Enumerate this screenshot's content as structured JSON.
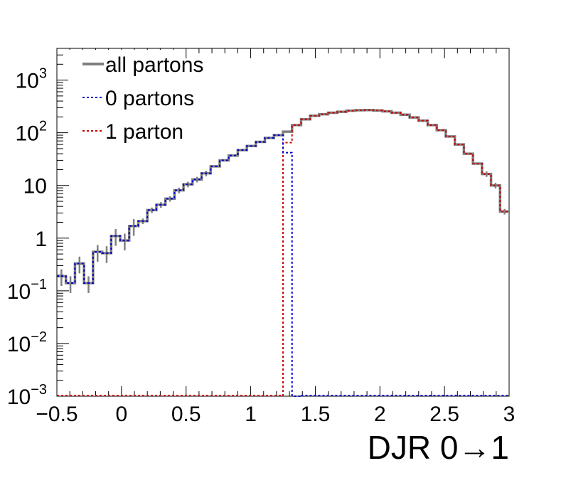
{
  "chart_data": {
    "type": "line",
    "title": "",
    "xlabel": "DJR 0→1",
    "ylabel": "",
    "xlim": [
      -0.5,
      3.0
    ],
    "ylim": [
      0.001,
      4000
    ],
    "y_scale": "log",
    "grid": false,
    "legend_position": "top-left",
    "x_tick_labels": [
      {
        "value": -0.5,
        "label": "−0.5"
      },
      {
        "value": 0,
        "label": "0"
      },
      {
        "value": 0.5,
        "label": "0.5"
      },
      {
        "value": 1,
        "label": "1"
      },
      {
        "value": 1.5,
        "label": "1.5"
      },
      {
        "value": 2,
        "label": "2"
      },
      {
        "value": 2.5,
        "label": "2.5"
      },
      {
        "value": 3,
        "label": "3"
      }
    ],
    "y_tick_labels": [
      {
        "value": 0.001,
        "base": "10",
        "exp": "−3"
      },
      {
        "value": 0.01,
        "base": "10",
        "exp": "−2"
      },
      {
        "value": 0.1,
        "base": "10",
        "exp": "−1"
      },
      {
        "value": 1,
        "base": "1",
        "exp": ""
      },
      {
        "value": 10,
        "base": "10",
        "exp": ""
      },
      {
        "value": 100,
        "base": "10",
        "exp": "2"
      },
      {
        "value": 1000,
        "base": "10",
        "exp": "3"
      }
    ],
    "bin_width": 0.07,
    "series": [
      {
        "name": "all partons",
        "color": "#808080",
        "style": "solid",
        "bins": [
          [
            -0.5,
            0.19
          ],
          [
            -0.43,
            0.14
          ],
          [
            -0.36,
            0.33
          ],
          [
            -0.29,
            0.14
          ],
          [
            -0.22,
            0.55
          ],
          [
            -0.15,
            0.52
          ],
          [
            -0.08,
            1.1
          ],
          [
            -0.01,
            0.9
          ],
          [
            0.06,
            1.7
          ],
          [
            0.13,
            2.1
          ],
          [
            0.2,
            3.4
          ],
          [
            0.27,
            4.3
          ],
          [
            0.34,
            5.6
          ],
          [
            0.41,
            8.1
          ],
          [
            0.48,
            10.5
          ],
          [
            0.55,
            13.0
          ],
          [
            0.62,
            17.0
          ],
          [
            0.69,
            23.0
          ],
          [
            0.76,
            30.0
          ],
          [
            0.83,
            37.0
          ],
          [
            0.9,
            47.0
          ],
          [
            0.97,
            56.0
          ],
          [
            1.04,
            67.0
          ],
          [
            1.11,
            80.0
          ],
          [
            1.18,
            90.0
          ],
          [
            1.25,
            105.0
          ],
          [
            1.32,
            140.0
          ],
          [
            1.39,
            180.0
          ],
          [
            1.46,
            210.0
          ],
          [
            1.53,
            225.0
          ],
          [
            1.6,
            240.0
          ],
          [
            1.67,
            250.0
          ],
          [
            1.74,
            262.0
          ],
          [
            1.81,
            268.0
          ],
          [
            1.88,
            270.0
          ],
          [
            1.95,
            265.0
          ],
          [
            2.02,
            255.0
          ],
          [
            2.09,
            240.0
          ],
          [
            2.16,
            220.0
          ],
          [
            2.23,
            195.0
          ],
          [
            2.3,
            170.0
          ],
          [
            2.37,
            140.0
          ],
          [
            2.44,
            112.0
          ],
          [
            2.51,
            85.0
          ],
          [
            2.58,
            60.0
          ],
          [
            2.65,
            40.0
          ],
          [
            2.72,
            26.0
          ],
          [
            2.79,
            16.5
          ],
          [
            2.86,
            10.0
          ],
          [
            2.93,
            3.2
          ]
        ]
      },
      {
        "name": "0 partons",
        "color": "#0000cc",
        "style": "dotted",
        "bins": [
          [
            -0.5,
            0.19
          ],
          [
            -0.43,
            0.14
          ],
          [
            -0.36,
            0.33
          ],
          [
            -0.29,
            0.14
          ],
          [
            -0.22,
            0.55
          ],
          [
            -0.15,
            0.52
          ],
          [
            -0.08,
            1.1
          ],
          [
            -0.01,
            0.9
          ],
          [
            0.06,
            1.7
          ],
          [
            0.13,
            2.1
          ],
          [
            0.2,
            3.4
          ],
          [
            0.27,
            4.3
          ],
          [
            0.34,
            5.6
          ],
          [
            0.41,
            8.1
          ],
          [
            0.48,
            10.5
          ],
          [
            0.55,
            13.0
          ],
          [
            0.62,
            17.0
          ],
          [
            0.69,
            23.0
          ],
          [
            0.76,
            30.0
          ],
          [
            0.83,
            37.0
          ],
          [
            0.9,
            47.0
          ],
          [
            0.97,
            56.0
          ],
          [
            1.04,
            67.0
          ],
          [
            1.11,
            80.0
          ],
          [
            1.18,
            90.0
          ],
          [
            1.25,
            42.0
          ],
          [
            1.32,
            0.001
          ]
        ]
      },
      {
        "name": "1 parton",
        "color": "#cc0000",
        "style": "dotted",
        "bins": [
          [
            1.25,
            65.0
          ],
          [
            1.32,
            140.0
          ],
          [
            1.39,
            180.0
          ],
          [
            1.46,
            210.0
          ],
          [
            1.53,
            225.0
          ],
          [
            1.6,
            240.0
          ],
          [
            1.67,
            250.0
          ],
          [
            1.74,
            262.0
          ],
          [
            1.81,
            268.0
          ],
          [
            1.88,
            270.0
          ],
          [
            1.95,
            265.0
          ],
          [
            2.02,
            255.0
          ],
          [
            2.09,
            240.0
          ],
          [
            2.16,
            220.0
          ],
          [
            2.23,
            195.0
          ],
          [
            2.3,
            170.0
          ],
          [
            2.37,
            140.0
          ],
          [
            2.44,
            112.0
          ],
          [
            2.51,
            85.0
          ],
          [
            2.58,
            60.0
          ],
          [
            2.65,
            40.0
          ],
          [
            2.72,
            26.0
          ],
          [
            2.79,
            16.5
          ],
          [
            2.86,
            10.0
          ],
          [
            2.93,
            3.2
          ]
        ]
      }
    ]
  }
}
